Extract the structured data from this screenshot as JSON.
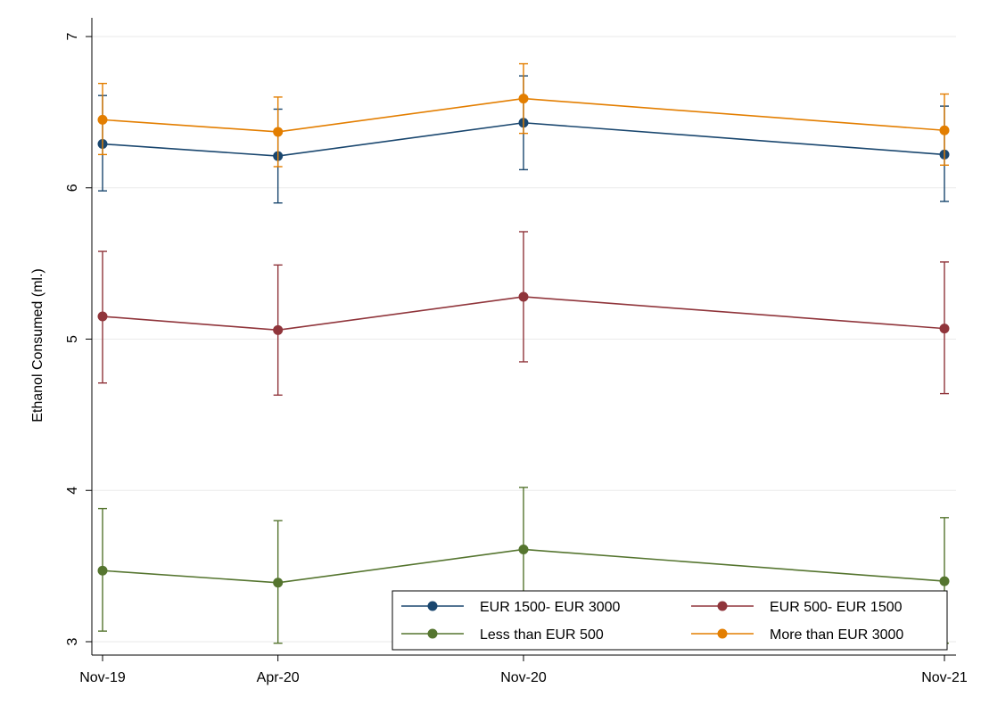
{
  "chart_data": {
    "type": "line",
    "ylabel": "Ethanol Consumed (ml.)",
    "xlabel": "",
    "ylim": [
      3,
      7
    ],
    "x_categories": [
      "Nov-19",
      "Apr-20",
      "Nov-20",
      "Nov-21"
    ],
    "x_positions": [
      0,
      5,
      12,
      24
    ],
    "xlim": [
      0,
      24
    ],
    "yticks": [
      "3",
      "4",
      "5",
      "6",
      "7"
    ],
    "grid": true,
    "legend_position": "bottom-right",
    "series": [
      {
        "name": "EUR 1500- EUR 3000",
        "color": "#1a476f",
        "values": [
          6.29,
          6.21,
          6.43,
          6.22
        ],
        "lower": [
          5.98,
          5.9,
          6.12,
          5.91
        ],
        "upper": [
          6.61,
          6.52,
          6.74,
          6.54
        ]
      },
      {
        "name": "EUR 500- EUR 1500",
        "color": "#90353b",
        "values": [
          5.15,
          5.06,
          5.28,
          5.07
        ],
        "lower": [
          4.71,
          4.63,
          4.85,
          4.64
        ],
        "upper": [
          5.58,
          5.49,
          5.71,
          5.51
        ]
      },
      {
        "name": "Less than EUR 500",
        "color": "#55752f",
        "values": [
          3.47,
          3.39,
          3.61,
          3.4
        ],
        "lower": [
          3.07,
          2.99,
          3.2,
          2.99
        ],
        "upper": [
          3.88,
          3.8,
          4.02,
          3.82
        ]
      },
      {
        "name": "More than EUR 3000",
        "color": "#e37e00",
        "values": [
          6.45,
          6.37,
          6.59,
          6.38
        ],
        "lower": [
          6.22,
          6.14,
          6.36,
          6.15
        ],
        "upper": [
          6.69,
          6.6,
          6.82,
          6.62
        ]
      }
    ]
  }
}
